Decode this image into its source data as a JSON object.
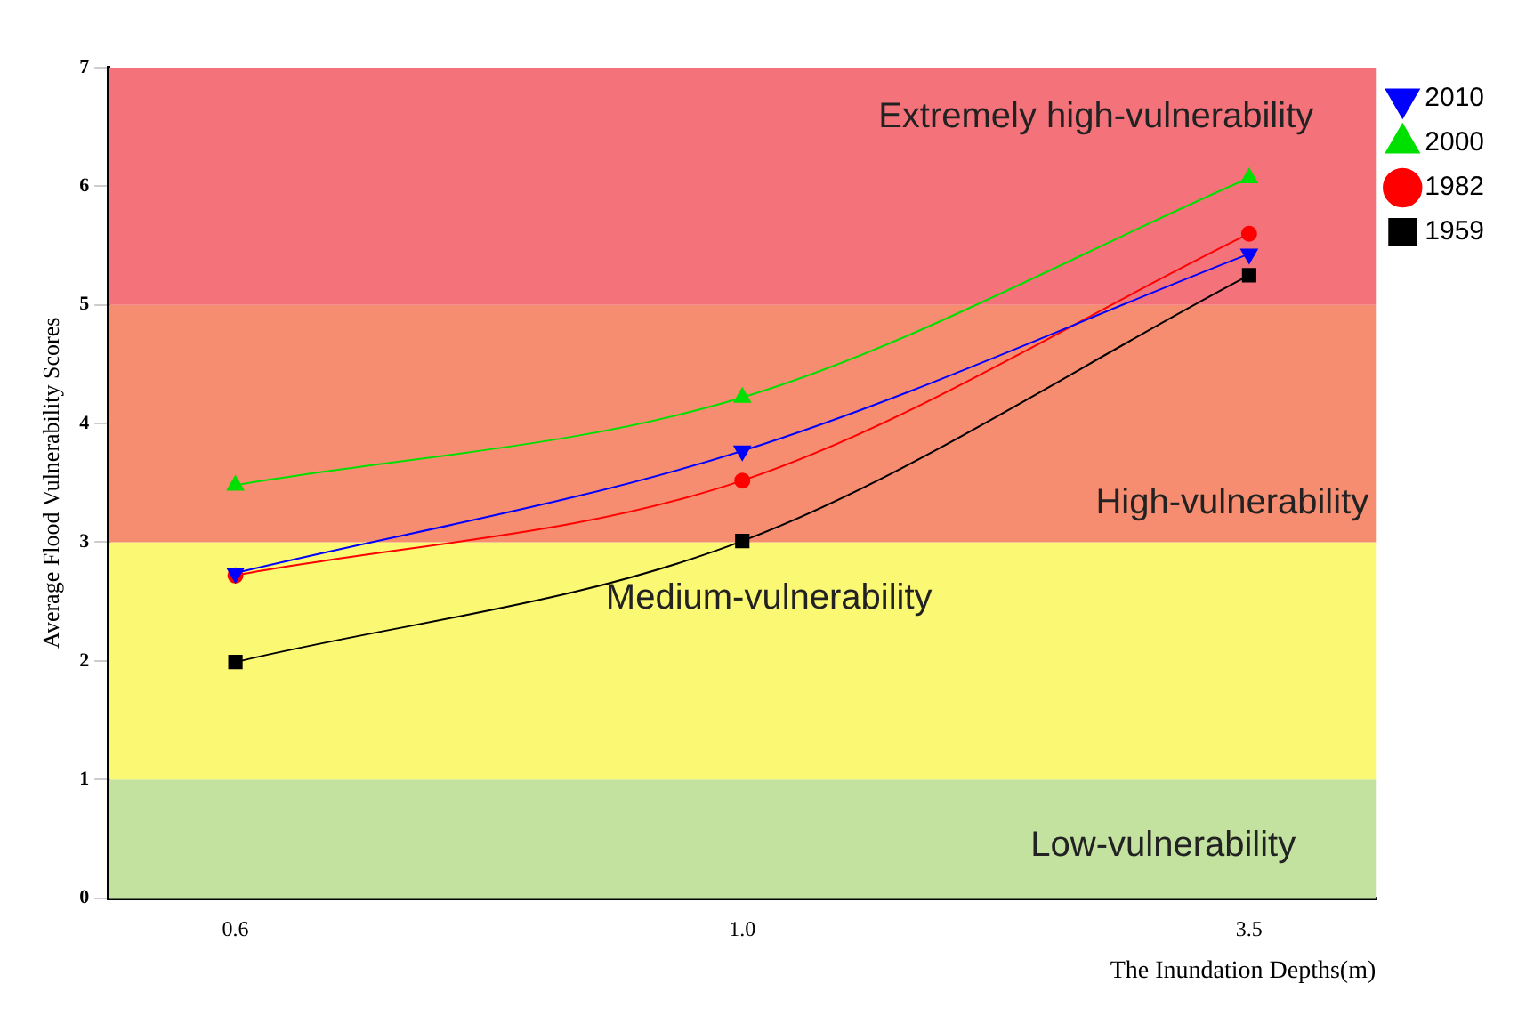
{
  "chart_data": {
    "type": "line",
    "xlabel": "The Inundation Depths(m)",
    "ylabel": "Average Flood Vulnerability Scores",
    "categories": [
      "0.6",
      "1.0",
      "3.5"
    ],
    "series": [
      {
        "name": "1959",
        "color": "#000000",
        "marker": "square",
        "values": [
          1.99,
          3.01,
          5.25
        ]
      },
      {
        "name": "1982",
        "color": "#ff0000",
        "marker": "circle",
        "values": [
          2.72,
          3.52,
          5.6
        ]
      },
      {
        "name": "2000",
        "color": "#00e000",
        "marker": "triangle",
        "values": [
          3.48,
          4.22,
          6.07
        ]
      },
      {
        "name": "2010",
        "color": "#0000ff",
        "marker": "triangle-down",
        "values": [
          2.74,
          3.77,
          5.43
        ]
      }
    ],
    "ylim": [
      0,
      7
    ],
    "yticks": [
      0,
      1,
      2,
      3,
      4,
      5,
      6,
      7
    ],
    "grid": false,
    "legend": "top right",
    "bands": [
      {
        "axis": "y",
        "from": 0,
        "to": 1,
        "label": "Low-vulnerability",
        "color": "#c3e29f"
      },
      {
        "axis": "y",
        "from": 1,
        "to": 3,
        "label": "Medium-vulnerability",
        "color": "#fbf873"
      },
      {
        "axis": "y",
        "from": 3,
        "to": 5,
        "label": "High-vulnerability",
        "color": "#f68c70"
      },
      {
        "axis": "y",
        "from": 5,
        "to": 7,
        "label": "Extremely high-vulnerability",
        "color": "#f4727a"
      }
    ]
  }
}
